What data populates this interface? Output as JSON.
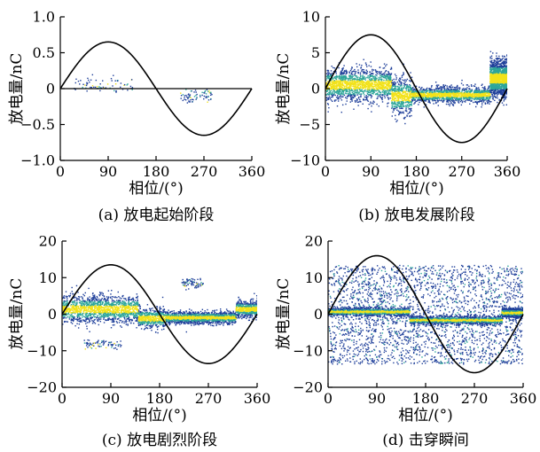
{
  "chart_data": [
    {
      "type": "scatter",
      "panel": "a",
      "caption": "(a)  放电起始阶段",
      "xlabel": "相位/(°)",
      "ylabel": "放电量/nC",
      "xlim": [
        0,
        360
      ],
      "ylim": [
        -1.0,
        1.0
      ],
      "xticks": [
        "0",
        "90",
        "180",
        "270",
        "360"
      ],
      "yticks": [
        "1.0",
        "0.5",
        "0",
        "−0.5",
        "−1.0"
      ],
      "yticks_values": [
        1.0,
        0.5,
        0,
        -0.5,
        -1.0
      ],
      "reference_sine_amplitude": 0.65,
      "series": [
        {
          "kind": "sparse discharge clusters",
          "clusters": [
            {
              "phase_range": [
                25,
                135
              ],
              "q_center": 0.05,
              "q_spread": 0.12,
              "density": "low"
            },
            {
              "phase_range": [
                225,
                285
              ],
              "q_center": -0.1,
              "q_spread": 0.1,
              "density": "low"
            }
          ]
        }
      ]
    },
    {
      "type": "scatter",
      "panel": "b",
      "caption": "(b)  放电发展阶段",
      "xlabel": "相位/(°)",
      "ylabel": "放电量/nC",
      "xlim": [
        0,
        360
      ],
      "ylim": [
        -10,
        10
      ],
      "xticks": [
        "0",
        "90",
        "180",
        "270",
        "360"
      ],
      "yticks": [
        "10",
        "5",
        "0",
        "−5",
        "−10"
      ],
      "yticks_values": [
        10,
        5,
        0,
        -5,
        -10
      ],
      "reference_sine_amplitude": 7.5,
      "series": [
        {
          "kind": "dense band",
          "bands": [
            {
              "phase_range": [
                0,
                130
              ],
              "q_center": 0.6,
              "q_spread": 2.5,
              "density": "high"
            },
            {
              "phase_range": [
                130,
                170
              ],
              "q_center": -1.0,
              "q_spread": 2.8,
              "density": "medium"
            },
            {
              "phase_range": [
                170,
                325
              ],
              "q_center": -0.8,
              "q_spread": 1.2,
              "density": "high"
            },
            {
              "phase_range": [
                325,
                360
              ],
              "q_center": 1.5,
              "q_spread": 2.8,
              "density": "high"
            }
          ]
        }
      ]
    },
    {
      "type": "scatter",
      "panel": "c",
      "caption": "(c)  放电剧烈阶段",
      "xlabel": "相位/(°)",
      "ylabel": "放电量/nC",
      "xlim": [
        0,
        360
      ],
      "ylim": [
        -20,
        20
      ],
      "xticks": [
        "0",
        "90",
        "180",
        "270",
        "360"
      ],
      "yticks": [
        "20",
        "10",
        "0",
        "−10",
        "−20"
      ],
      "yticks_values": [
        20,
        10,
        0,
        -10,
        -20
      ],
      "reference_sine_amplitude": 13.5,
      "series": [
        {
          "kind": "dense band with outlier clusters",
          "bands": [
            {
              "phase_range": [
                0,
                140
              ],
              "q_center": 1.5,
              "q_spread": 4.0,
              "density": "high"
            },
            {
              "phase_range": [
                140,
                190
              ],
              "q_center": -1.0,
              "q_spread": 3.0,
              "density": "medium"
            },
            {
              "phase_range": [
                190,
                320
              ],
              "q_center": -0.8,
              "q_spread": 1.8,
              "density": "high"
            },
            {
              "phase_range": [
                320,
                360
              ],
              "q_center": 1.5,
              "q_spread": 2.5,
              "density": "medium"
            }
          ],
          "clusters": [
            {
              "phase_range": [
                220,
                260
              ],
              "q_center": 8.5,
              "q_spread": 1.5,
              "density": "low"
            },
            {
              "phase_range": [
                40,
                110
              ],
              "q_center": -8.0,
              "q_spread": 1.2,
              "density": "low"
            }
          ]
        }
      ]
    },
    {
      "type": "scatter",
      "panel": "d",
      "caption": "(d)  击穿瞬间",
      "xlabel": "相位/(°)",
      "ylabel": "放电量/nC",
      "xlim": [
        0,
        360
      ],
      "ylim": [
        -20,
        20
      ],
      "xticks": [
        "0",
        "90",
        "180",
        "270",
        "360"
      ],
      "yticks": [
        "20",
        "10",
        "0",
        "−10",
        "−20"
      ],
      "yticks_values": [
        20,
        10,
        0,
        -10,
        -20
      ],
      "reference_sine_amplitude": 16,
      "series": [
        {
          "kind": "uniform spread with central band",
          "spread": {
            "phase_range": [
              0,
              360
            ],
            "q_range": [
              -13.5,
              13.5
            ],
            "density": "medium"
          },
          "bands": [
            {
              "phase_range": [
                0,
                150
              ],
              "q_center": 0.8,
              "q_spread": 1.2,
              "density": "high"
            },
            {
              "phase_range": [
                150,
                320
              ],
              "q_center": -1.5,
              "q_spread": 1.2,
              "density": "high"
            },
            {
              "phase_range": [
                320,
                360
              ],
              "q_center": 0.5,
              "q_spread": 1.2,
              "density": "high"
            }
          ]
        }
      ]
    }
  ],
  "colors": {
    "axis": "#000000",
    "sine": "#000000",
    "density_low": "#1f3f9a",
    "density_mid": "#2ea69a",
    "density_high": "#f2e21a"
  }
}
